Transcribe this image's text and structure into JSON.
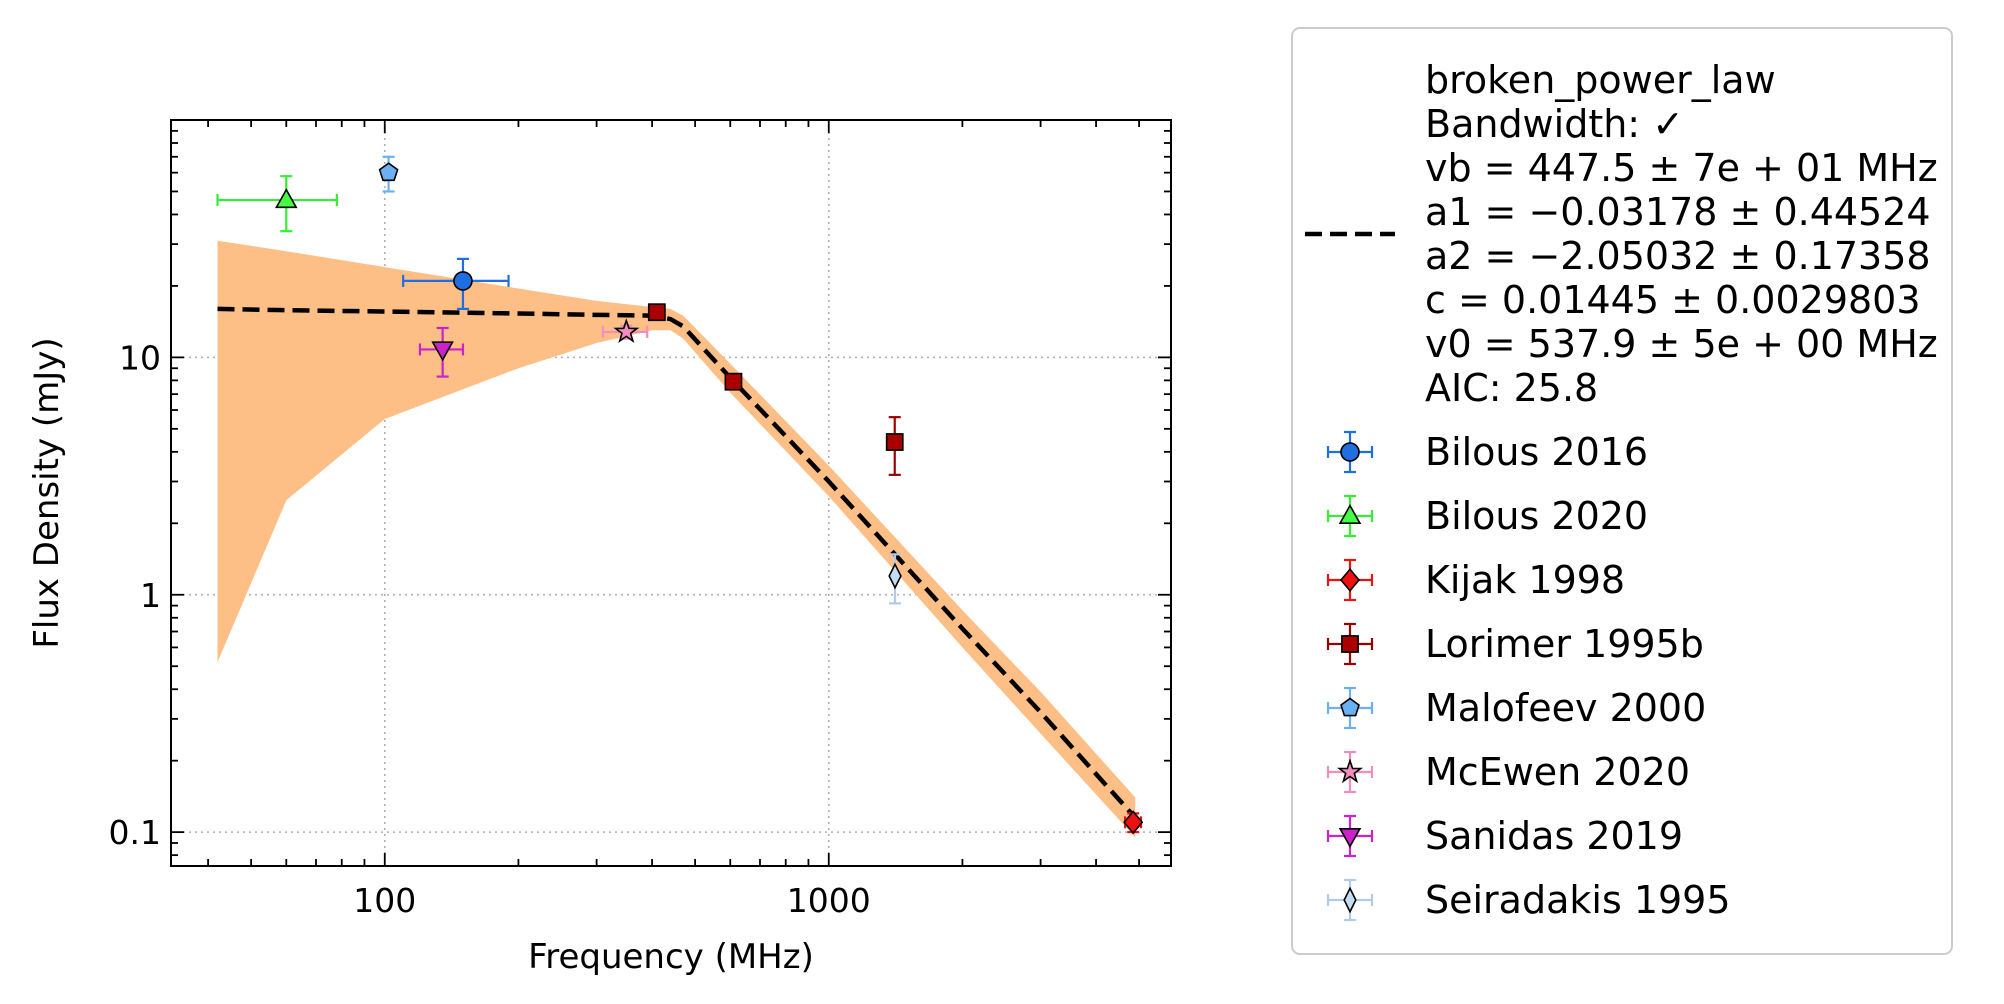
{
  "chart_data": {
    "type": "scatter",
    "xlabel": "Frequency (MHz)",
    "ylabel": "Flux Density (mJy)",
    "xscale": "log",
    "yscale": "log",
    "xlim": [
      33,
      5900
    ],
    "ylim": [
      0.072,
      100
    ],
    "x_ticks": [
      {
        "value": 100,
        "label": "100"
      },
      {
        "value": 1000,
        "label": "1000"
      }
    ],
    "y_ticks": [
      {
        "value": 0.1,
        "label": "0.1"
      },
      {
        "value": 1,
        "label": "1"
      },
      {
        "value": 10,
        "label": "10"
      }
    ],
    "grid": true,
    "legend_position": "outside-right",
    "model": {
      "name": "broken_power_law",
      "legend_lines": [
        "broken_power_law",
        "Bandwidth: ✓",
        "vb = 447.5 ± 7e + 01 MHz",
        "a1 = −0.03178 ± 0.44524",
        "a2 = −2.05032 ± 0.17358",
        "c = 0.01445 ± 0.0029803",
        "v0 = 537.9 ± 5e + 00 MHz",
        "AIC: 25.8"
      ],
      "line_color": "#000000",
      "band_color": "#fdbf86",
      "fit_x": [
        42,
        60,
        100,
        200,
        300,
        400,
        440,
        470,
        600,
        1000,
        2000,
        3000,
        4900
      ],
      "fit_y": [
        16.0,
        15.8,
        15.6,
        15.3,
        15.1,
        15.0,
        14.5,
        13.5,
        8.2,
        3.0,
        0.72,
        0.32,
        0.115
      ],
      "band_upper": [
        31.0,
        28.0,
        24.0,
        19.5,
        17.3,
        16.3,
        16.0,
        15.0,
        9.4,
        3.5,
        0.86,
        0.39,
        0.14
      ],
      "band_lower": [
        0.52,
        2.5,
        5.5,
        9.0,
        11.5,
        13.0,
        13.0,
        12.0,
        7.1,
        2.6,
        0.6,
        0.26,
        0.095
      ]
    },
    "series": [
      {
        "name": "Bilous 2016",
        "marker": "circle",
        "color": "#1f6fe0",
        "ecolor": "#1f6fe0",
        "points": [
          {
            "x": 150,
            "y": 21,
            "xerr": [
              40,
              40
            ],
            "yerr": [
              5,
              5
            ]
          }
        ]
      },
      {
        "name": "Bilous 2020",
        "marker": "triangle-up",
        "color": "#44ff44",
        "ecolor": "#33ee33",
        "points": [
          {
            "x": 60,
            "y": 46,
            "xerr": [
              18,
              18
            ],
            "yerr": [
              12,
              12
            ]
          }
        ]
      },
      {
        "name": "Kijak 1998",
        "marker": "diamond",
        "color": "#ee1111",
        "ecolor": "#ee1111",
        "points": [
          {
            "x": 4850,
            "y": 0.11,
            "xerr": [
              200,
              200
            ],
            "yerr": [
              0.01,
              0.01
            ]
          }
        ]
      },
      {
        "name": "Lorimer 1995b",
        "marker": "square",
        "color": "#aa0000",
        "ecolor": "#990000",
        "points": [
          {
            "x": 410,
            "y": 15.5,
            "xerr": [
              0,
              0
            ],
            "yerr": [
              0,
              0
            ]
          },
          {
            "x": 610,
            "y": 7.9,
            "xerr": [
              0,
              0
            ],
            "yerr": [
              0,
              0
            ]
          },
          {
            "x": 1408,
            "y": 4.4,
            "xerr": [
              0,
              0
            ],
            "yerr": [
              1.2,
              1.2
            ]
          }
        ]
      },
      {
        "name": "Malofeev 2000",
        "marker": "pentagon",
        "color": "#6ab0f2",
        "ecolor": "#6ab0f2",
        "points": [
          {
            "x": 102,
            "y": 60,
            "xerr": [
              0,
              0
            ],
            "yerr": [
              10,
              10
            ]
          }
        ]
      },
      {
        "name": "McEwen 2020",
        "marker": "star",
        "color": "#f48cc0",
        "ecolor": "#f48cc0",
        "points": [
          {
            "x": 350,
            "y": 12.8,
            "xerr": [
              40,
              40
            ],
            "yerr": [
              0.8,
              0.8
            ]
          }
        ]
      },
      {
        "name": "Sanidas 2019",
        "marker": "triangle-down",
        "color": "#cc22cc",
        "ecolor": "#cc22cc",
        "points": [
          {
            "x": 135,
            "y": 10.8,
            "xerr": [
              15,
              15
            ],
            "yerr": [
              2.5,
              2.5
            ]
          }
        ]
      },
      {
        "name": "Seiradakis 1995",
        "marker": "thin-diamond",
        "color": "#c6dcf4",
        "ecolor": "#aecbe8",
        "points": [
          {
            "x": 1410,
            "y": 1.2,
            "xerr": [
              0,
              0
            ],
            "yerr": [
              0.28,
              0.28
            ]
          }
        ]
      }
    ]
  }
}
